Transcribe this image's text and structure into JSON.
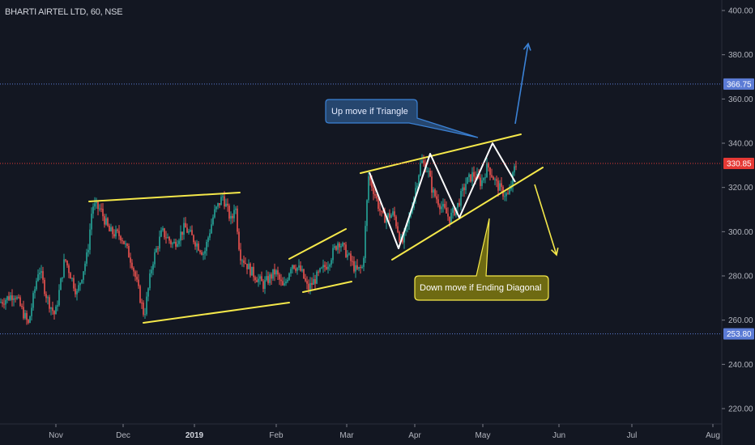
{
  "symbol": "BHARTI AIRTEL LTD, 60, NSE",
  "colors": {
    "background": "#131722",
    "axis_text": "#b2b5be",
    "up_candle": "#26a69a",
    "down_candle": "#ef5350",
    "yellow_line": "#f5e84a",
    "white_line": "#ffffff",
    "blue_arrow": "#3b82d6",
    "upper_level": "#5b7bd5",
    "current_price_tag": "#e53935",
    "lower_level": "#5b7bd5"
  },
  "chart_data": {
    "type": "candlestick",
    "y_ticks": [
      "400.00",
      "380.00",
      "360.00",
      "340.00",
      "320.00",
      "300.00",
      "280.00",
      "260.00",
      "240.00",
      "220.00"
    ],
    "x_ticks": [
      "Nov",
      "Dec",
      "2019",
      "Feb",
      "Mar",
      "Apr",
      "May",
      "Jun",
      "Jul",
      "Aug"
    ],
    "ylim": [
      214,
      403
    ],
    "price_tags": [
      {
        "label": "366.75",
        "value": 366.75,
        "style": "blue-dotted"
      },
      {
        "label": "330.85",
        "value": 330.85,
        "style": "red-dotted"
      },
      {
        "label": "253.80",
        "value": 253.8,
        "style": "blue-dotted"
      }
    ],
    "annotations": [
      {
        "text": "Up move if Triangle",
        "color": "blue"
      },
      {
        "text": "Down move if Ending Diagonal",
        "color": "yellow"
      }
    ]
  }
}
